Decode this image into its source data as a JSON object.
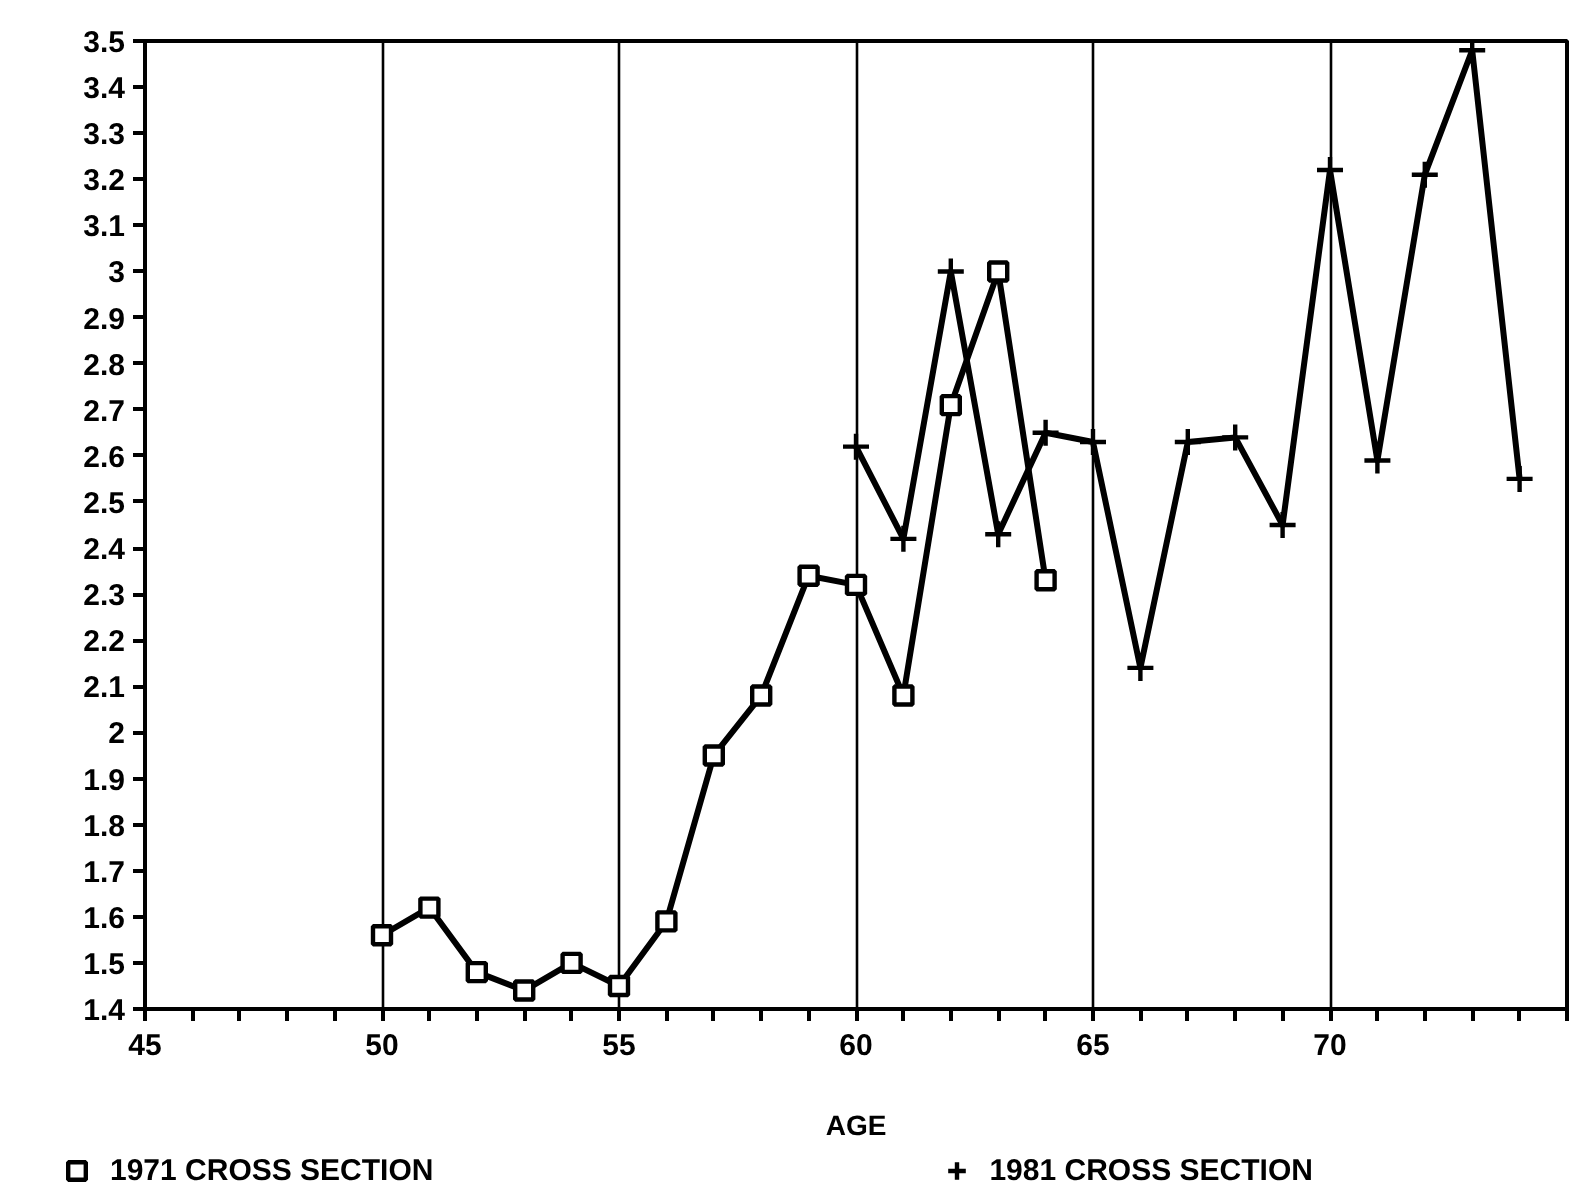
{
  "chart_data": {
    "type": "line",
    "xlabel": "AGE",
    "series": [
      {
        "name": "1971 CROSS SECTION",
        "color": "#000000",
        "marker": "square",
        "x": [
          50,
          51,
          52,
          53,
          54,
          55,
          56,
          57,
          58,
          59,
          60,
          61,
          62,
          63,
          64
        ],
        "values": [
          1.56,
          1.62,
          1.48,
          1.44,
          1.5,
          1.45,
          1.59,
          1.95,
          2.08,
          2.34,
          2.32,
          2.08,
          2.71,
          3.0,
          2.33
        ]
      },
      {
        "name": "1981 CROSS SECTION",
        "color": "#000000",
        "marker": "cross",
        "x": [
          60,
          61,
          62,
          63,
          64,
          65,
          66,
          67,
          68,
          69,
          70,
          71,
          72,
          73,
          74
        ],
        "values": [
          2.62,
          2.42,
          3.0,
          2.43,
          2.65,
          2.63,
          2.14,
          2.63,
          2.64,
          2.45,
          3.22,
          2.59,
          3.21,
          3.48,
          2.55
        ]
      }
    ],
    "xlim": [
      45,
      75
    ],
    "xticks": [
      45,
      {
        "value": 46,
        "label": null
      },
      {
        "value": 47,
        "label": null
      },
      {
        "value": 48,
        "label": null
      },
      {
        "value": 49,
        "label": null
      },
      50,
      {
        "value": 51,
        "label": null
      },
      {
        "value": 52,
        "label": null
      },
      {
        "value": 53,
        "label": null
      },
      {
        "value": 54,
        "label": null
      },
      55,
      {
        "value": 56,
        "label": null
      },
      {
        "value": 57,
        "label": null
      },
      {
        "value": 58,
        "label": null
      },
      {
        "value": 59,
        "label": null
      },
      60,
      {
        "value": 61,
        "label": null
      },
      {
        "value": 62,
        "label": null
      },
      {
        "value": 63,
        "label": null
      },
      {
        "value": 64,
        "label": null
      },
      65,
      {
        "value": 66,
        "label": null
      },
      {
        "value": 67,
        "label": null
      },
      {
        "value": 68,
        "label": null
      },
      {
        "value": 69,
        "label": null
      },
      70,
      {
        "value": 71,
        "label": null
      },
      {
        "value": 72,
        "label": null
      },
      {
        "value": 73,
        "label": null
      },
      {
        "value": 74,
        "label": null
      },
      {
        "value": 75,
        "label": null
      }
    ],
    "ylim": [
      1.4,
      3.5
    ],
    "yticks": [
      1.4,
      1.5,
      1.6,
      1.7,
      1.8,
      1.9,
      2,
      2.1,
      2.2,
      2.3,
      2.4,
      2.5,
      2.6,
      2.7,
      2.8,
      2.9,
      3,
      3.1,
      3.2,
      3.3,
      3.4,
      3.5
    ],
    "grid": "x",
    "legend": "bottom",
    "line_style": "solid"
  }
}
